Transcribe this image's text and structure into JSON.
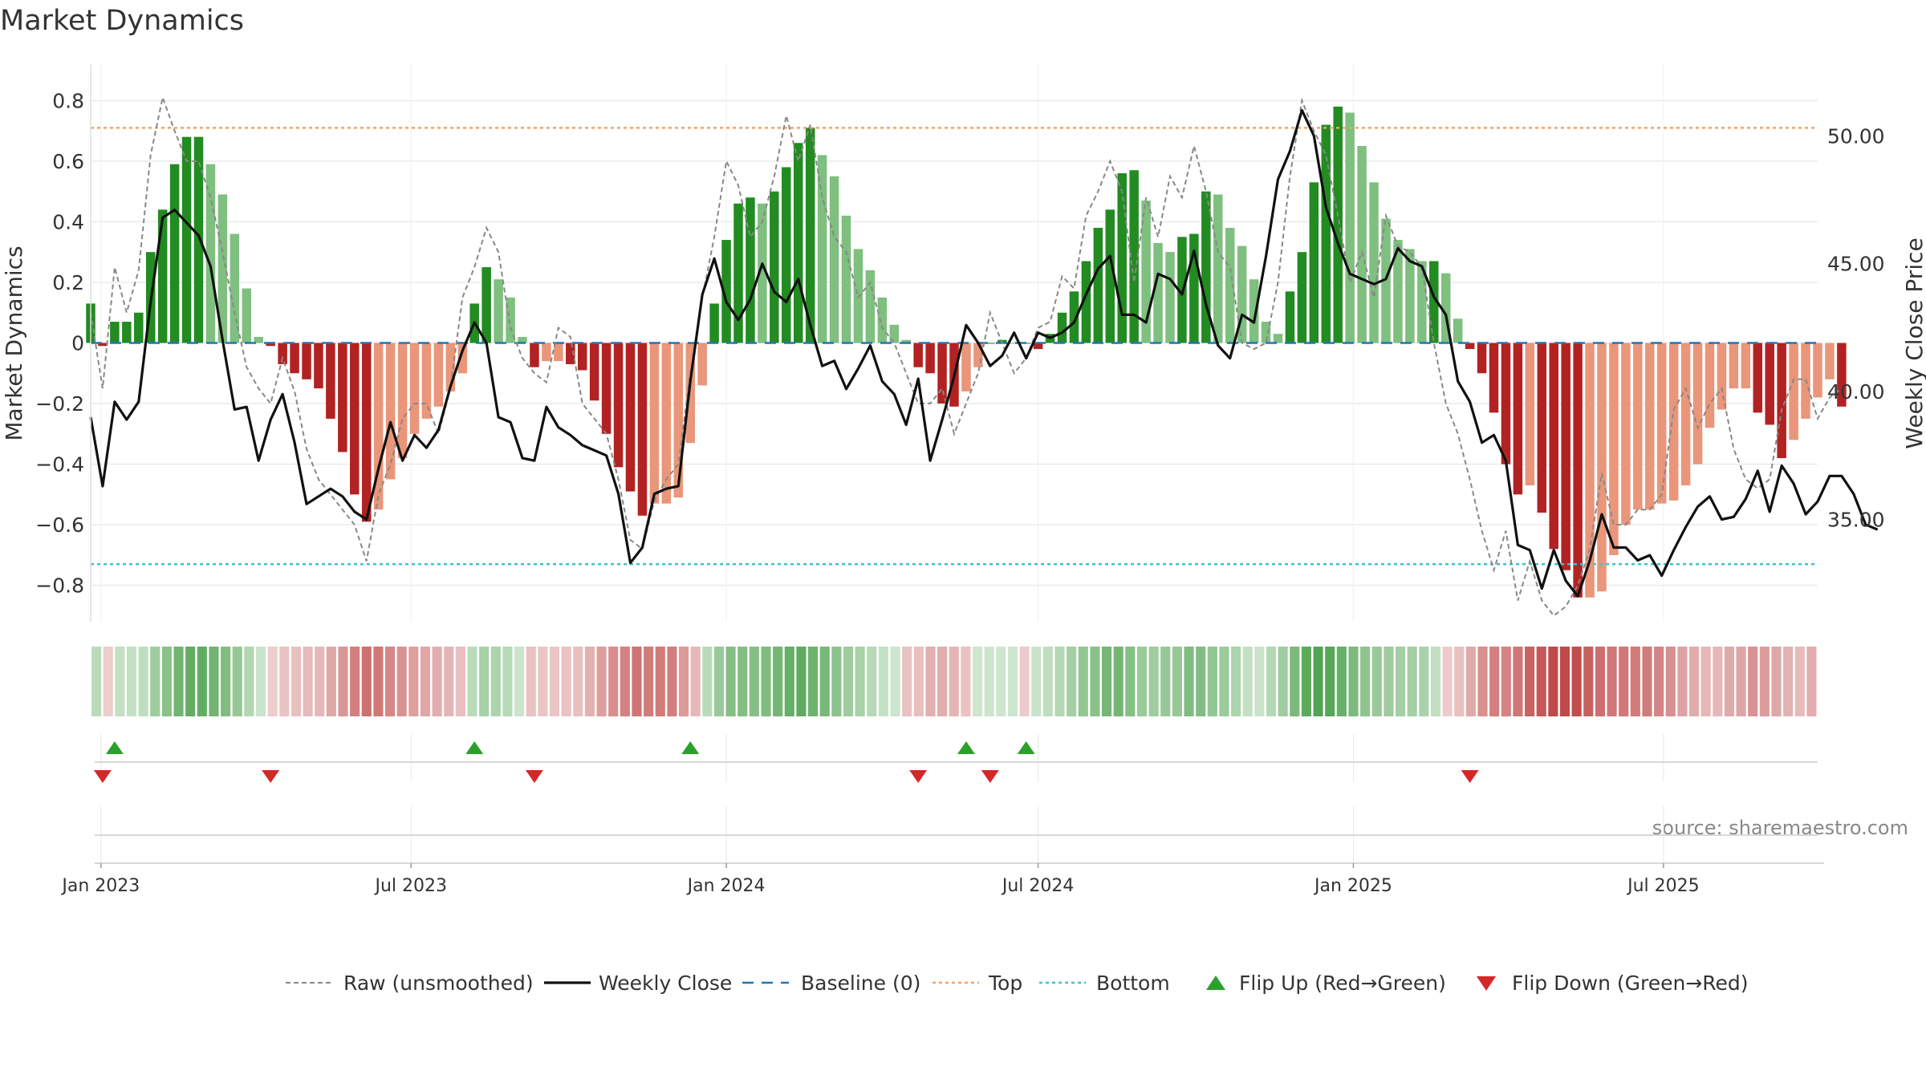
{
  "chart_data": {
    "type": "bar",
    "title": "Market Dynamics",
    "ylabel": "Market Dynamics",
    "ylabel_right": "Weekly Close Price",
    "ylim": [
      -0.92,
      0.92
    ],
    "ylim_right": [
      31.0,
      52.8
    ],
    "yticks": [
      -0.8,
      -0.6,
      -0.4,
      -0.2,
      0,
      0.2,
      0.4,
      0.6,
      0.8
    ],
    "ytick_labels": [
      "−0.8",
      "−0.6",
      "−0.4",
      "−0.2",
      "0",
      "0.2",
      "0.4",
      "0.6",
      "0.8"
    ],
    "yticks_right": [
      35,
      40,
      45,
      50
    ],
    "ytick_labels_right": [
      "35.00",
      "40.00",
      "45.00",
      "50.00"
    ],
    "x_start": "2022-12-26",
    "x_end": "2025-09-29",
    "x_step_days": 7,
    "x_ticks": [
      "2023-01-01",
      "2023-07-01",
      "2024-01-01",
      "2024-07-01",
      "2025-01-01",
      "2025-07-01"
    ],
    "x_tick_labels": [
      "Jan 2023",
      "Jul 2023",
      "Jan 2024",
      "Jul 2024",
      "Jan 2025",
      "Jul 2025"
    ],
    "top_level": 0.71,
    "bottom_level": -0.73,
    "grid": true,
    "legend_position": "bottom",
    "series": [
      {
        "name": "Market Dynamics (smoothed)",
        "values": [
          0.13,
          -0.01,
          0.07,
          0.07,
          0.1,
          0.3,
          0.44,
          0.59,
          0.68,
          0.68,
          0.59,
          0.49,
          0.36,
          0.18,
          0.02,
          -0.01,
          -0.07,
          -0.1,
          -0.12,
          -0.15,
          -0.25,
          -0.36,
          -0.5,
          -0.59,
          -0.55,
          -0.45,
          -0.38,
          -0.3,
          -0.25,
          -0.21,
          -0.16,
          -0.1,
          0.13,
          0.25,
          0.21,
          0.15,
          0.02,
          -0.08,
          -0.06,
          -0.06,
          -0.07,
          -0.09,
          -0.19,
          -0.3,
          -0.41,
          -0.49,
          -0.57,
          -0.53,
          -0.53,
          -0.51,
          -0.33,
          -0.14,
          0.13,
          0.34,
          0.46,
          0.48,
          0.46,
          0.5,
          0.58,
          0.66,
          0.71,
          0.62,
          0.55,
          0.42,
          0.31,
          0.24,
          0.15,
          0.06,
          0.01,
          -0.08,
          -0.1,
          -0.2,
          -0.21,
          -0.16,
          -0.08,
          0.0,
          0.01,
          0.0,
          0.0,
          -0.02,
          0.03,
          0.1,
          0.17,
          0.27,
          0.38,
          0.44,
          0.56,
          0.57,
          0.47,
          0.33,
          0.3,
          0.35,
          0.36,
          0.5,
          0.49,
          0.38,
          0.32,
          0.21,
          0.07,
          0.03,
          0.17,
          0.3,
          0.53,
          0.72,
          0.78,
          0.76,
          0.65,
          0.53,
          0.41,
          0.34,
          0.31,
          0.27,
          0.27,
          0.23,
          0.08,
          -0.02,
          -0.1,
          -0.23,
          -0.4,
          -0.5,
          -0.47,
          -0.56,
          -0.68,
          -0.75,
          -0.84,
          -0.84,
          -0.82,
          -0.7,
          -0.6,
          -0.55,
          -0.55,
          -0.53,
          -0.52,
          -0.47,
          -0.4,
          -0.28,
          -0.22,
          -0.15,
          -0.15,
          -0.23,
          -0.27,
          -0.38,
          -0.32,
          -0.25,
          -0.18,
          -0.12,
          -0.21
        ]
      },
      {
        "name": "Raw (unsmoothed)",
        "values": [
          0.1,
          -0.15,
          0.25,
          0.1,
          0.24,
          0.62,
          0.81,
          0.7,
          0.6,
          0.6,
          0.48,
          0.3,
          0.1,
          -0.08,
          -0.15,
          -0.2,
          -0.05,
          -0.16,
          -0.35,
          -0.45,
          -0.5,
          -0.55,
          -0.6,
          -0.72,
          -0.5,
          -0.4,
          -0.25,
          -0.2,
          -0.2,
          -0.3,
          -0.15,
          0.15,
          0.25,
          0.38,
          0.3,
          0.05,
          -0.05,
          -0.1,
          -0.13,
          0.05,
          0.02,
          -0.2,
          -0.25,
          -0.3,
          -0.45,
          -0.65,
          -0.68,
          -0.52,
          -0.45,
          -0.4,
          -0.1,
          0.15,
          0.35,
          0.6,
          0.52,
          0.35,
          0.4,
          0.55,
          0.75,
          0.6,
          0.72,
          0.48,
          0.35,
          0.3,
          0.15,
          0.2,
          0.05,
          0.0,
          -0.1,
          -0.2,
          -0.2,
          -0.15,
          -0.3,
          -0.2,
          -0.1,
          0.1,
          0.0,
          -0.1,
          -0.05,
          0.05,
          0.07,
          0.22,
          0.18,
          0.42,
          0.5,
          0.6,
          0.5,
          0.2,
          0.48,
          0.35,
          0.55,
          0.48,
          0.65,
          0.5,
          0.3,
          0.25,
          0.0,
          -0.02,
          0.0,
          0.2,
          0.55,
          0.8,
          0.7,
          0.62,
          0.42,
          0.2,
          0.3,
          0.15,
          0.42,
          0.32,
          0.3,
          0.25,
          0.0,
          -0.2,
          -0.3,
          -0.45,
          -0.62,
          -0.75,
          -0.62,
          -0.85,
          -0.72,
          -0.85,
          -0.9,
          -0.87,
          -0.8,
          -0.68,
          -0.43,
          -0.6,
          -0.6,
          -0.55,
          -0.55,
          -0.5,
          -0.22,
          -0.15,
          -0.28,
          -0.2,
          -0.15,
          -0.35,
          -0.45,
          -0.48,
          -0.45,
          -0.22,
          -0.12,
          -0.12,
          -0.25,
          -0.18,
          -0.15
        ]
      },
      {
        "name": "Weekly Close",
        "values": [
          39.0,
          36.3,
          39.6,
          38.9,
          39.6,
          43.5,
          46.8,
          47.1,
          46.6,
          46.1,
          44.9,
          42.0,
          39.3,
          39.4,
          37.3,
          38.9,
          39.9,
          38.0,
          35.6,
          35.9,
          36.2,
          35.9,
          35.3,
          35.0,
          37.0,
          38.8,
          37.3,
          38.3,
          37.8,
          38.5,
          40.2,
          41.6,
          42.7,
          41.9,
          39.0,
          38.8,
          37.4,
          37.3,
          39.4,
          38.6,
          38.3,
          37.9,
          37.7,
          37.5,
          36.0,
          33.3,
          33.9,
          36.0,
          36.2,
          36.3,
          40.4,
          43.8,
          45.2,
          43.5,
          42.8,
          43.6,
          45.0,
          43.9,
          43.5,
          44.4,
          42.6,
          41.0,
          41.2,
          40.1,
          40.9,
          41.8,
          40.4,
          39.9,
          38.7,
          40.5,
          37.3,
          38.9,
          40.6,
          42.6,
          41.9,
          41.0,
          41.4,
          42.3,
          41.3,
          42.3,
          42.1,
          42.3,
          42.7,
          43.8,
          44.8,
          45.3,
          43.0,
          43.0,
          42.7,
          44.6,
          44.4,
          43.8,
          45.5,
          43.4,
          41.8,
          41.3,
          43.0,
          42.7,
          45.3,
          48.3,
          49.4,
          51.0,
          50.0,
          47.2,
          45.8,
          44.6,
          44.4,
          44.2,
          44.4,
          45.6,
          45.1,
          44.9,
          43.7,
          43.0,
          40.4,
          39.6,
          38.0,
          38.3,
          37.3,
          34.0,
          33.8,
          32.3,
          33.8,
          32.6,
          32.0,
          33.4,
          35.2,
          33.9,
          33.9,
          33.4,
          33.6,
          32.8,
          33.8,
          34.7,
          35.5,
          35.9,
          35.0,
          35.1,
          35.8,
          36.9,
          35.3,
          37.1,
          36.4,
          35.2,
          35.7,
          36.7,
          36.7,
          36.0,
          34.8,
          34.6
        ]
      }
    ],
    "flip_up_dates": [
      "2023-01-09",
      "2023-08-07",
      "2023-12-11",
      "2024-05-20",
      "2024-06-24"
    ],
    "flip_down_dates": [
      "2023-01-02",
      "2023-04-10",
      "2023-09-11",
      "2024-04-22",
      "2024-06-03",
      "2025-03-10"
    ],
    "source_text": "source: sharemaestro.com",
    "legend": [
      {
        "label": "Raw (unsmoothed)",
        "style": "dashed-gray"
      },
      {
        "label": "Weekly Close",
        "style": "solid-black"
      },
      {
        "label": "Baseline (0)",
        "style": "dashed-blue"
      },
      {
        "label": "Top",
        "style": "dotted-orange"
      },
      {
        "label": "Bottom",
        "style": "dotted-cyan"
      },
      {
        "label": "Flip Up (Red→Green)",
        "style": "triangle-up-green"
      },
      {
        "label": "Flip Down (Green→Red)",
        "style": "triangle-down-red"
      }
    ]
  },
  "colors": {
    "green_strong": "#228b22",
    "green_light": "#7fbf7f",
    "red_strong": "#b22222",
    "salmon_light": "#e9967a",
    "top_line": "#f4a460",
    "bottom_line": "#40c0d0",
    "baseline": "#1f77b4",
    "raw_line": "#888888",
    "close_line": "#111111",
    "flip_up": "#2ca02c",
    "flip_down": "#d62728",
    "text": "#333333",
    "source": "#888888"
  }
}
